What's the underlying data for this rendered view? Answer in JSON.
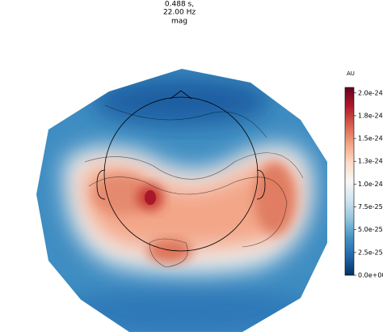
{
  "chart_data": {
    "type": "topomap",
    "title_lines": [
      "0.488 s,",
      "22.00 Hz",
      "mag"
    ],
    "colorbar": {
      "label": "AU",
      "lim": [
        0,
        2.06e-24
      ],
      "ticks": [
        {
          "value": 0,
          "label": "0.0e+00"
        },
        {
          "value": 2.5e-25,
          "label": "2.5e-25"
        },
        {
          "value": 5e-25,
          "label": "5.0e-25"
        },
        {
          "value": 7.5e-25,
          "label": "7.5e-25"
        },
        {
          "value": 1e-24,
          "label": "1.0e-24"
        },
        {
          "value": 1.25e-24,
          "label": "1.3e-24"
        },
        {
          "value": 1.5e-24,
          "label": "1.5e-24"
        },
        {
          "value": 1.75e-24,
          "label": "1.8e-24"
        },
        {
          "value": 2e-24,
          "label": "2.0e-24"
        }
      ],
      "colors": [
        "#053061",
        "#2166ac",
        "#4393c3",
        "#92c5de",
        "#d1e5f0",
        "#f7f7f7",
        "#fddbc7",
        "#f4a582",
        "#d6604d",
        "#b2182b",
        "#67001f"
      ]
    }
  }
}
